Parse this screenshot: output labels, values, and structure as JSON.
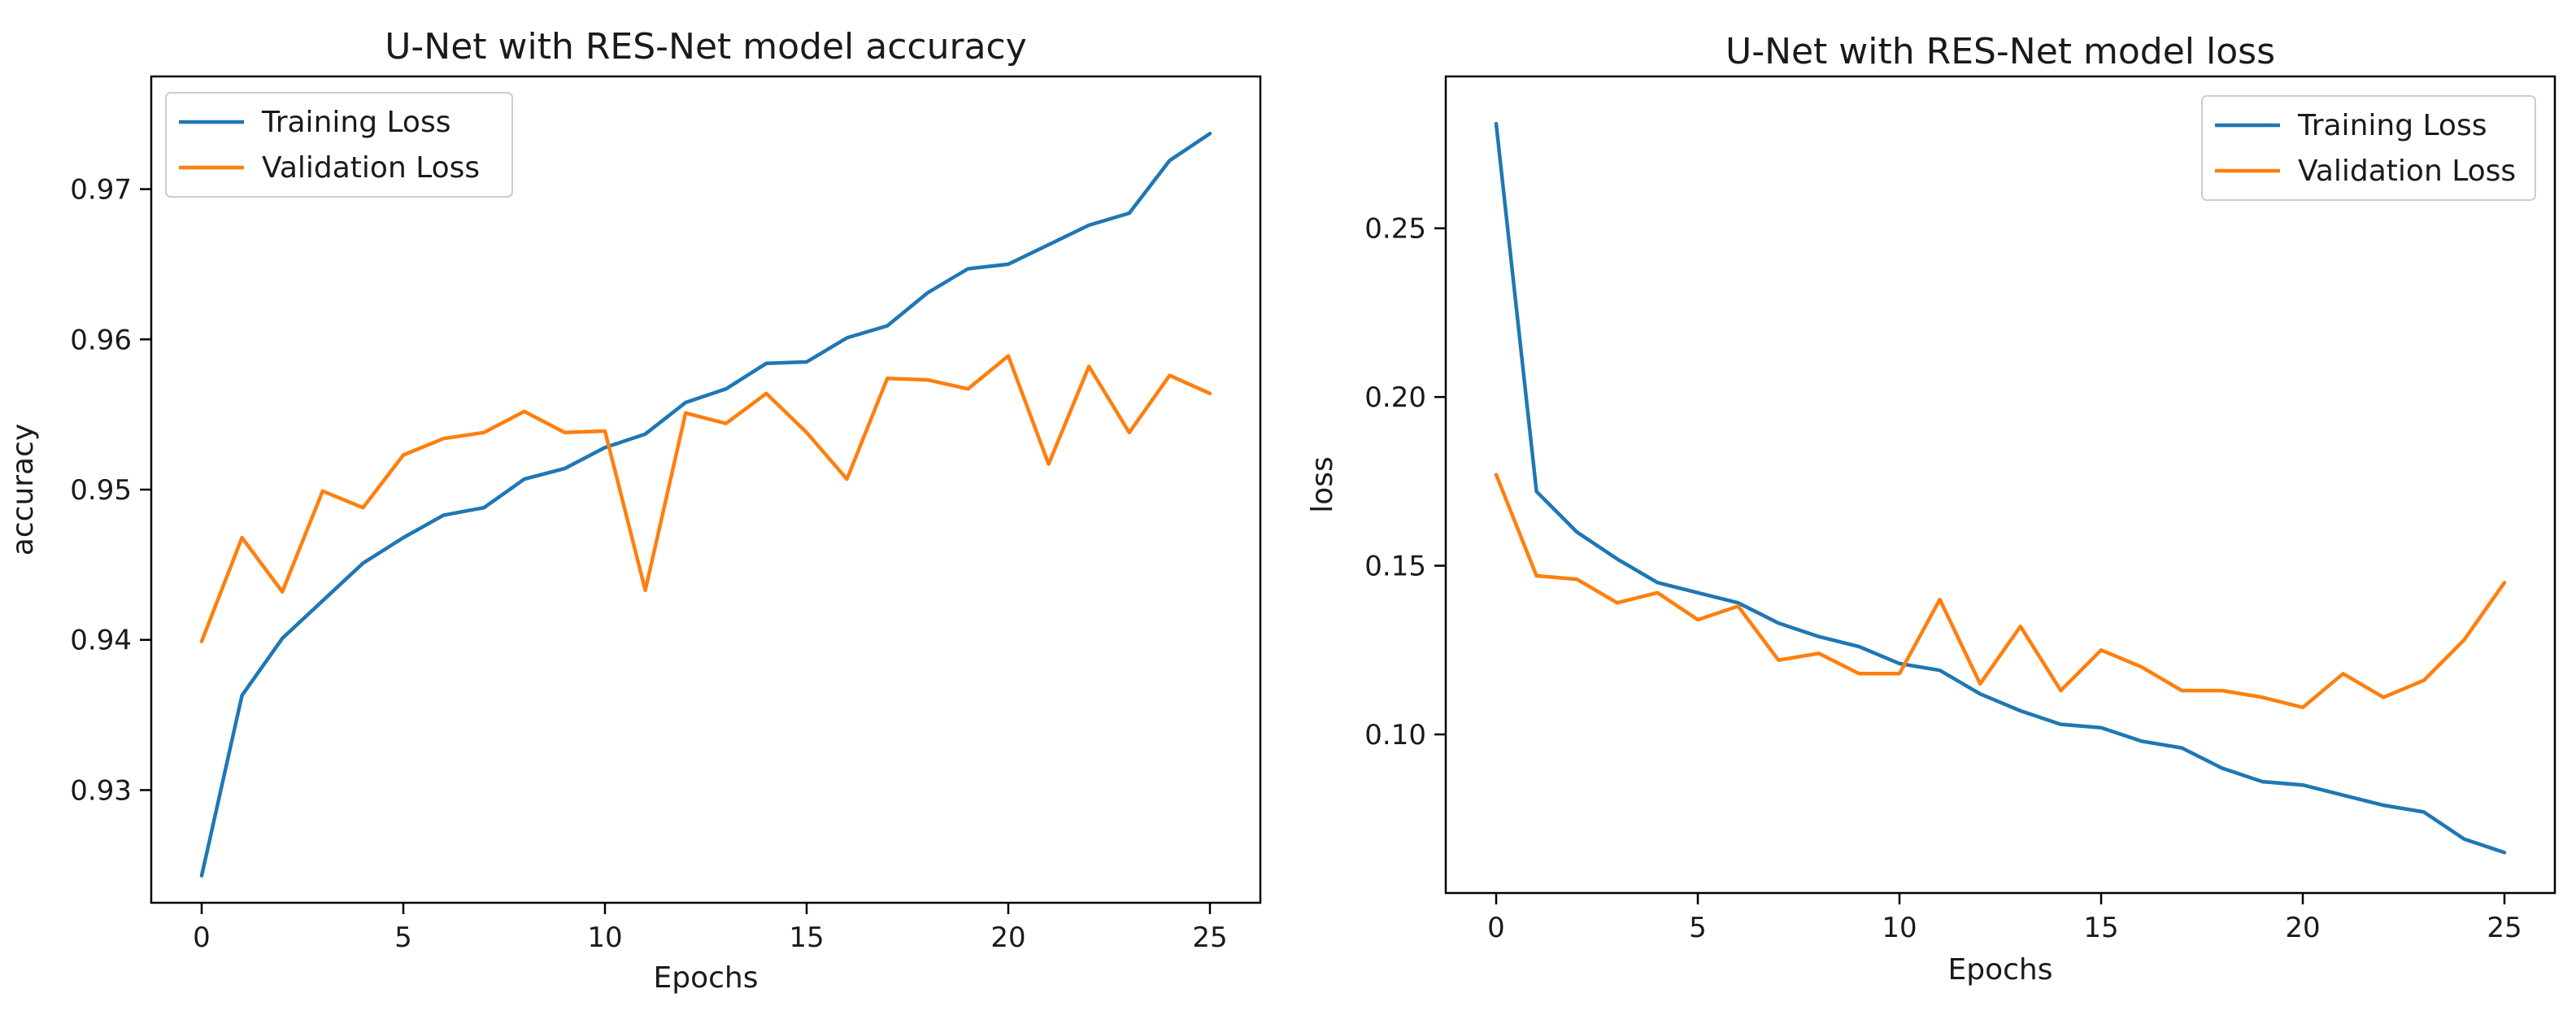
{
  "chart_data": [
    {
      "type": "line",
      "title": "U-Net with RES-Net model accuracy",
      "xlabel": "Epochs",
      "ylabel": "accuracy",
      "xlim": [
        -1.25,
        26.25
      ],
      "ylim": [
        0.9225,
        0.9775
      ],
      "xticks": [
        0,
        5,
        10,
        15,
        20,
        25
      ],
      "yticks": [
        0.93,
        0.94,
        0.95,
        0.96,
        0.97
      ],
      "ytick_labels": [
        "0.93",
        "0.94",
        "0.95",
        "0.96",
        "0.97"
      ],
      "grid": false,
      "legend_position": "top-left",
      "x": [
        0,
        1,
        2,
        3,
        4,
        5,
        6,
        7,
        8,
        9,
        10,
        11,
        12,
        13,
        14,
        15,
        16,
        17,
        18,
        19,
        20,
        21,
        22,
        23,
        24,
        25
      ],
      "series": [
        {
          "name": "Training Loss",
          "color": "#1f77b4",
          "values": [
            0.9243,
            0.9363,
            0.9401,
            0.9426,
            0.9451,
            0.9468,
            0.9483,
            0.9488,
            0.9507,
            0.9514,
            0.9528,
            0.9537,
            0.9558,
            0.9567,
            0.9584,
            0.9585,
            0.9601,
            0.9609,
            0.9631,
            0.9647,
            0.965,
            0.9663,
            0.9676,
            0.9684,
            0.9719,
            0.9737
          ]
        },
        {
          "name": "Validation Loss",
          "color": "#ff7f0e",
          "values": [
            0.9399,
            0.9468,
            0.9432,
            0.9499,
            0.9488,
            0.9523,
            0.9534,
            0.9538,
            0.9552,
            0.9538,
            0.9539,
            0.9433,
            0.9551,
            0.9544,
            0.9564,
            0.9538,
            0.9507,
            0.9574,
            0.9573,
            0.9567,
            0.9589,
            0.9517,
            0.9582,
            0.9538,
            0.9576,
            0.9564
          ]
        }
      ]
    },
    {
      "type": "line",
      "title": "U-Net with RES-Net model loss",
      "xlabel": "Epochs",
      "ylabel": "loss",
      "xlim": [
        -1.25,
        26.25
      ],
      "ylim": [
        0.053,
        0.295
      ],
      "xticks": [
        0,
        5,
        10,
        15,
        20,
        25
      ],
      "yticks": [
        0.1,
        0.15,
        0.2,
        0.25
      ],
      "ytick_labels": [
        "0.10",
        "0.15",
        "0.20",
        "0.25"
      ],
      "grid": false,
      "legend_position": "top-right",
      "x": [
        0,
        1,
        2,
        3,
        4,
        5,
        6,
        7,
        8,
        9,
        10,
        11,
        12,
        13,
        14,
        15,
        16,
        17,
        18,
        19,
        20,
        21,
        22,
        23,
        24,
        25
      ],
      "series": [
        {
          "name": "Training Loss",
          "color": "#1f77b4",
          "values": [
            0.281,
            0.172,
            0.16,
            0.152,
            0.145,
            0.142,
            0.139,
            0.133,
            0.129,
            0.126,
            0.121,
            0.119,
            0.112,
            0.107,
            0.103,
            0.102,
            0.098,
            0.096,
            0.09,
            0.086,
            0.085,
            0.082,
            0.079,
            0.077,
            0.069,
            0.065
          ]
        },
        {
          "name": "Validation Loss",
          "color": "#ff7f0e",
          "values": [
            0.177,
            0.147,
            0.146,
            0.139,
            0.142,
            0.134,
            0.138,
            0.122,
            0.124,
            0.118,
            0.118,
            0.14,
            0.115,
            0.132,
            0.113,
            0.125,
            0.12,
            0.113,
            0.113,
            0.111,
            0.108,
            0.118,
            0.111,
            0.116,
            0.128,
            0.145
          ]
        }
      ]
    }
  ]
}
